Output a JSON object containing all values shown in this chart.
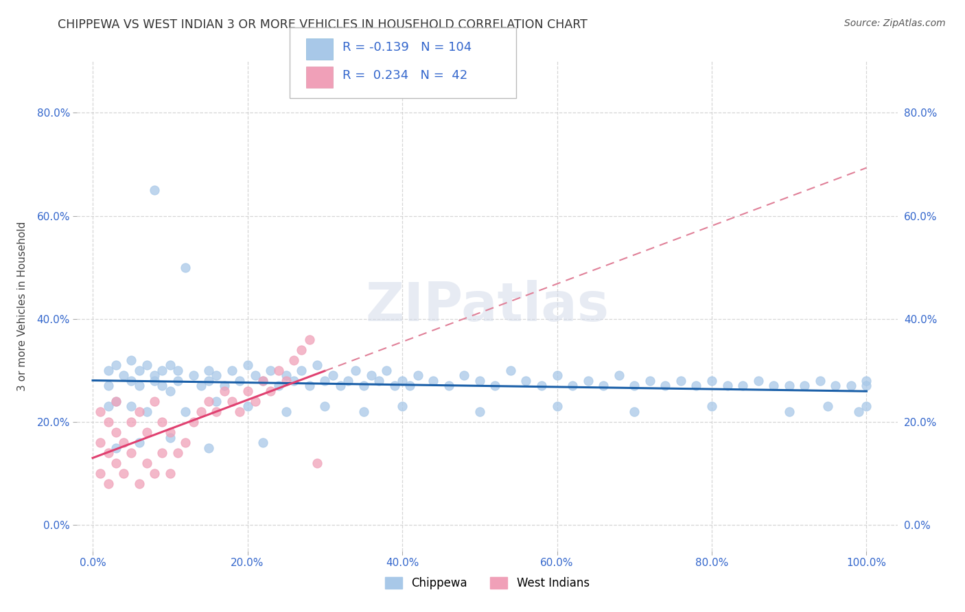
{
  "title": "CHIPPEWA VS WEST INDIAN 3 OR MORE VEHICLES IN HOUSEHOLD CORRELATION CHART",
  "source": "Source: ZipAtlas.com",
  "ylabel": "3 or more Vehicles in Household",
  "x_ticks": [
    0.0,
    20.0,
    40.0,
    60.0,
    80.0,
    100.0
  ],
  "y_ticks": [
    0.0,
    20.0,
    40.0,
    60.0,
    80.0
  ],
  "xlim": [
    -2,
    104
  ],
  "ylim": [
    -5,
    90
  ],
  "legend_labels": [
    "Chippewa",
    "West Indians"
  ],
  "chippewa_R": -0.139,
  "chippewa_N": 104,
  "westindian_R": 0.234,
  "westindian_N": 42,
  "blue_color": "#a8c8e8",
  "pink_color": "#f0a0b8",
  "blue_line_color": "#1a5fa8",
  "pink_line_color": "#e04070",
  "pink_dash_color": "#e08098",
  "background_color": "#ffffff",
  "watermark": "ZIPatlas",
  "chippewa_x": [
    2,
    2,
    3,
    4,
    5,
    5,
    6,
    6,
    7,
    8,
    8,
    9,
    9,
    10,
    10,
    11,
    11,
    12,
    13,
    14,
    15,
    15,
    16,
    17,
    18,
    19,
    20,
    21,
    22,
    23,
    24,
    25,
    26,
    27,
    28,
    29,
    30,
    31,
    32,
    33,
    34,
    35,
    36,
    37,
    38,
    39,
    40,
    41,
    42,
    44,
    46,
    48,
    50,
    52,
    54,
    56,
    58,
    60,
    62,
    64,
    66,
    68,
    70,
    72,
    74,
    76,
    78,
    80,
    82,
    84,
    86,
    88,
    90,
    92,
    94,
    96,
    98,
    100,
    100,
    2,
    3,
    5,
    7,
    8,
    12,
    16,
    20,
    25,
    30,
    35,
    40,
    50,
    60,
    70,
    80,
    90,
    95,
    99,
    100,
    3,
    6,
    10,
    15,
    22
  ],
  "chippewa_y": [
    30,
    27,
    31,
    29,
    32,
    28,
    30,
    27,
    31,
    29,
    28,
    30,
    27,
    31,
    26,
    30,
    28,
    50,
    29,
    27,
    30,
    28,
    29,
    27,
    30,
    28,
    31,
    29,
    28,
    30,
    27,
    29,
    28,
    30,
    27,
    31,
    28,
    29,
    27,
    28,
    30,
    27,
    29,
    28,
    30,
    27,
    28,
    27,
    29,
    28,
    27,
    29,
    28,
    27,
    30,
    28,
    27,
    29,
    27,
    28,
    27,
    29,
    27,
    28,
    27,
    28,
    27,
    28,
    27,
    27,
    28,
    27,
    27,
    27,
    28,
    27,
    27,
    28,
    27,
    23,
    24,
    23,
    22,
    65,
    22,
    24,
    23,
    22,
    23,
    22,
    23,
    22,
    23,
    22,
    23,
    22,
    23,
    22,
    23,
    15,
    16,
    17,
    15,
    16
  ],
  "westindian_x": [
    1,
    1,
    1,
    2,
    2,
    2,
    3,
    3,
    3,
    4,
    4,
    5,
    5,
    6,
    6,
    7,
    7,
    8,
    8,
    9,
    9,
    10,
    10,
    11,
    12,
    13,
    14,
    15,
    16,
    17,
    18,
    19,
    20,
    21,
    22,
    23,
    24,
    25,
    26,
    27,
    28,
    29
  ],
  "westindian_y": [
    10,
    16,
    22,
    8,
    14,
    20,
    12,
    18,
    24,
    10,
    16,
    14,
    20,
    8,
    22,
    12,
    18,
    10,
    24,
    14,
    20,
    10,
    18,
    14,
    16,
    20,
    22,
    24,
    22,
    26,
    24,
    22,
    26,
    24,
    28,
    26,
    30,
    28,
    32,
    34,
    36,
    12
  ]
}
